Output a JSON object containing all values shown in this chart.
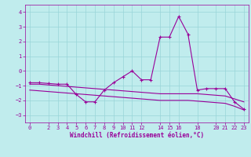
{
  "xlabel": "Windchill (Refroidissement éolien,°C)",
  "background_color": "#c0eced",
  "grid_color": "#98d4d8",
  "line_color": "#990099",
  "hours": [
    0,
    1,
    2,
    3,
    4,
    5,
    6,
    7,
    8,
    9,
    10,
    11,
    12,
    13,
    14,
    15,
    16,
    17,
    18,
    19,
    20,
    21,
    22,
    23
  ],
  "windchill": [
    -0.8,
    -0.8,
    -0.85,
    -0.9,
    -0.9,
    -1.6,
    -2.1,
    -2.1,
    -1.3,
    -0.8,
    -0.4,
    0.0,
    -0.6,
    -0.6,
    2.3,
    2.3,
    3.7,
    2.5,
    -1.3,
    -1.2,
    -1.2,
    -1.2,
    -2.1,
    -2.6
  ],
  "line2": [
    -0.9,
    -0.9,
    -0.95,
    -1.0,
    -1.05,
    -1.1,
    -1.15,
    -1.2,
    -1.25,
    -1.3,
    -1.35,
    -1.4,
    -1.45,
    -1.5,
    -1.55,
    -1.55,
    -1.55,
    -1.55,
    -1.55,
    -1.6,
    -1.65,
    -1.7,
    -1.9,
    -2.1
  ],
  "line3": [
    -1.3,
    -1.35,
    -1.4,
    -1.45,
    -1.5,
    -1.55,
    -1.6,
    -1.65,
    -1.7,
    -1.75,
    -1.8,
    -1.85,
    -1.9,
    -1.95,
    -2.0,
    -2.0,
    -2.0,
    -2.0,
    -2.05,
    -2.1,
    -2.15,
    -2.2,
    -2.4,
    -2.65
  ],
  "ylim": [
    -3.5,
    4.5
  ],
  "xlim": [
    -0.5,
    23.5
  ],
  "yticks": [
    -3,
    -2,
    -1,
    0,
    1,
    2,
    3,
    4
  ],
  "xticks": [
    0,
    2,
    3,
    4,
    5,
    6,
    7,
    8,
    9,
    10,
    11,
    12,
    14,
    15,
    16,
    18,
    20,
    21,
    22,
    23
  ]
}
